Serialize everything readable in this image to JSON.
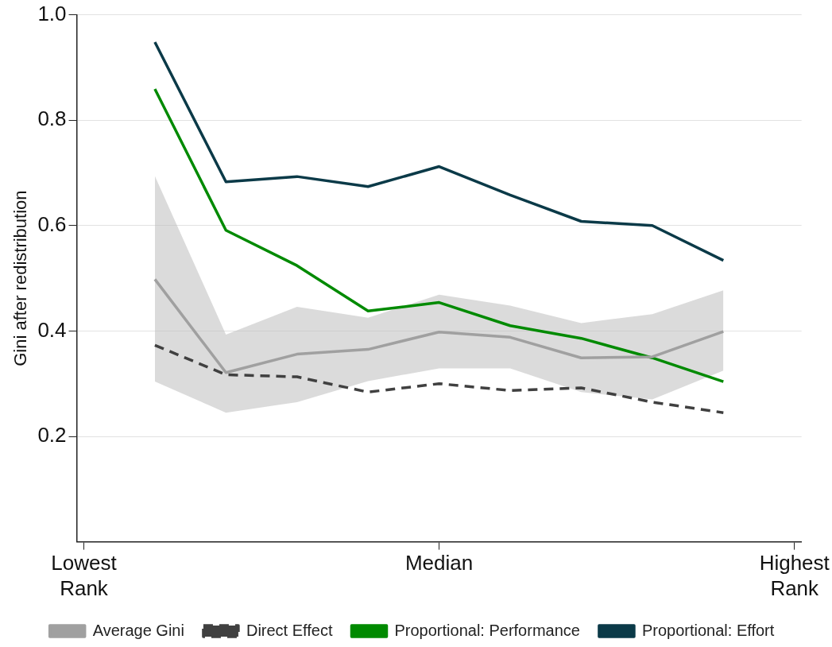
{
  "chart_data": {
    "type": "line",
    "ylabel": "Gini after redistribution",
    "categories": [
      "Lowest Rank",
      null,
      null,
      null,
      null,
      "Median",
      null,
      null,
      null,
      null,
      "Highest Rank"
    ],
    "ylim": [
      0,
      1
    ],
    "yticks": [
      0.2,
      0.4,
      0.6,
      0.8,
      {
        "value": 1,
        "label": "1.0"
      }
    ],
    "grid": "y",
    "legend": "bottom",
    "marker": "none",
    "line_style": "solid",
    "series": [
      {
        "name": "Average Gini",
        "color": "#a0a0a0",
        "values": [
          null,
          0.498,
          0.321,
          0.356,
          0.365,
          0.398,
          0.388,
          0.349,
          0.351,
          0.399,
          null
        ],
        "lower": [
          null,
          0.304,
          0.245,
          0.265,
          0.305,
          0.329,
          0.329,
          0.284,
          0.27,
          0.325,
          null
        ],
        "upper": [
          null,
          0.694,
          0.393,
          0.446,
          0.425,
          0.469,
          0.448,
          0.415,
          0.432,
          0.477,
          null
        ]
      },
      {
        "name": "Direct Effect",
        "color": "#404040",
        "line_style": "dashed",
        "values": [
          null,
          0.373,
          0.317,
          0.313,
          0.284,
          0.3,
          0.287,
          0.292,
          0.265,
          0.245,
          null
        ]
      },
      {
        "name": "Proportional: Performance",
        "color": "#008a00",
        "values": [
          null,
          0.859,
          0.591,
          0.524,
          0.438,
          0.454,
          0.41,
          0.386,
          0.349,
          0.304,
          null
        ]
      },
      {
        "name": "Proportional: Effort",
        "color": "#0b3a48",
        "values": [
          null,
          0.948,
          0.683,
          0.693,
          0.674,
          0.712,
          0.658,
          0.608,
          0.6,
          0.534,
          null
        ]
      }
    ]
  }
}
